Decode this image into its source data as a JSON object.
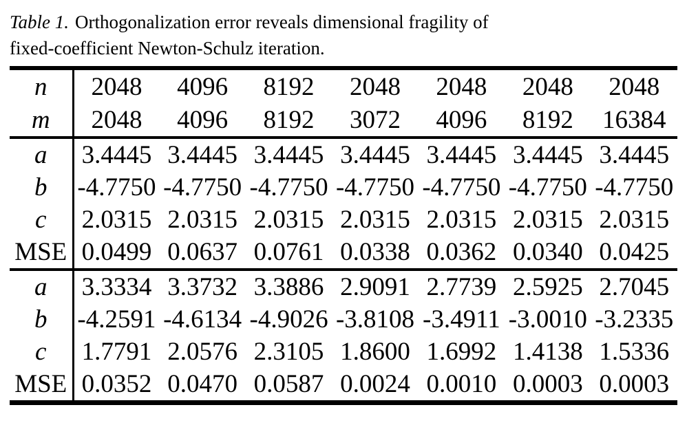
{
  "caption": {
    "label": "Table 1.",
    "line1": "Orthogonalization error reveals dimensional fragility of",
    "line2": "fixed-coefficient Newton-Schulz iteration."
  },
  "table": {
    "header": [
      {
        "label": "n",
        "values": [
          "2048",
          "4096",
          "8192",
          "2048",
          "2048",
          "2048",
          "2048"
        ]
      },
      {
        "label": "m",
        "values": [
          "2048",
          "4096",
          "8192",
          "3072",
          "4096",
          "8192",
          "16384"
        ]
      }
    ],
    "block1": [
      {
        "label": "a",
        "values": [
          "3.4445",
          "3.4445",
          "3.4445",
          "3.4445",
          "3.4445",
          "3.4445",
          "3.4445"
        ]
      },
      {
        "label": "b",
        "values": [
          "-4.7750",
          "-4.7750",
          "-4.7750",
          "-4.7750",
          "-4.7750",
          "-4.7750",
          "-4.7750"
        ]
      },
      {
        "label": "c",
        "values": [
          "2.0315",
          "2.0315",
          "2.0315",
          "2.0315",
          "2.0315",
          "2.0315",
          "2.0315"
        ]
      },
      {
        "label": "MSE",
        "values": [
          "0.0499",
          "0.0637",
          "0.0761",
          "0.0338",
          "0.0362",
          "0.0340",
          "0.0425"
        ]
      }
    ],
    "block2": [
      {
        "label": "a",
        "values": [
          "3.3334",
          "3.3732",
          "3.3886",
          "2.9091",
          "2.7739",
          "2.5925",
          "2.7045"
        ]
      },
      {
        "label": "b",
        "values": [
          "-4.2591",
          "-4.6134",
          "-4.9026",
          "-3.8108",
          "-3.4911",
          "-3.0010",
          "-3.2335"
        ]
      },
      {
        "label": "c",
        "values": [
          "1.7791",
          "2.0576",
          "2.3105",
          "1.8600",
          "1.6992",
          "1.4138",
          "1.5336"
        ]
      },
      {
        "label": "MSE",
        "values": [
          "0.0352",
          "0.0470",
          "0.0587",
          "0.0024",
          "0.0010",
          "0.0003",
          "0.0003"
        ]
      }
    ]
  },
  "colors": {
    "background": "#ffffff",
    "text": "#000000",
    "rule": "#000000"
  }
}
